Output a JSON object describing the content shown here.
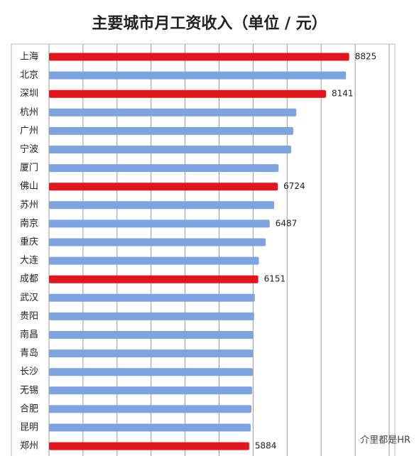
{
  "chart_data": {
    "type": "hbar",
    "title": "主要城市月工资收入（单位 / 元）",
    "categories": [
      "上海",
      "北京",
      "深圳",
      "杭州",
      "广州",
      "宁波",
      "厦门",
      "佛山",
      "苏州",
      "南京",
      "重庆",
      "大连",
      "成都",
      "武汉",
      "贵阳",
      "南昌",
      "青岛",
      "长沙",
      "无锡",
      "合肥",
      "昆明",
      "郑州"
    ],
    "values": [
      8825,
      8730,
      8141,
      7270,
      7180,
      7120,
      6750,
      6724,
      6620,
      6487,
      6370,
      6170,
      6151,
      6050,
      6030,
      6010,
      6000,
      5990,
      5970,
      5950,
      5930,
      5884
    ],
    "value_labels": [
      "8825",
      null,
      "8141",
      null,
      null,
      null,
      null,
      "6724",
      null,
      "6487",
      null,
      null,
      "6151",
      null,
      null,
      null,
      null,
      null,
      null,
      null,
      null,
      "5884"
    ],
    "colors": [
      "#e3141c",
      "#7ea4df",
      "#e3141c",
      "#7ea4df",
      "#7ea4df",
      "#7ea4df",
      "#7ea4df",
      "#e3141c",
      "#7ea4df",
      "#7ea4df",
      "#7ea4df",
      "#7ea4df",
      "#e3141c",
      "#7ea4df",
      "#7ea4df",
      "#7ea4df",
      "#7ea4df",
      "#7ea4df",
      "#7ea4df",
      "#7ea4df",
      "#7ea4df",
      "#e3141c"
    ],
    "xlim": [
      0,
      10000
    ],
    "xticks": [
      0,
      1000,
      2000,
      3000,
      4000,
      5000,
      6000,
      7000,
      8000,
      9000,
      10000
    ],
    "grid": true,
    "watermark": "介里都是HR"
  }
}
